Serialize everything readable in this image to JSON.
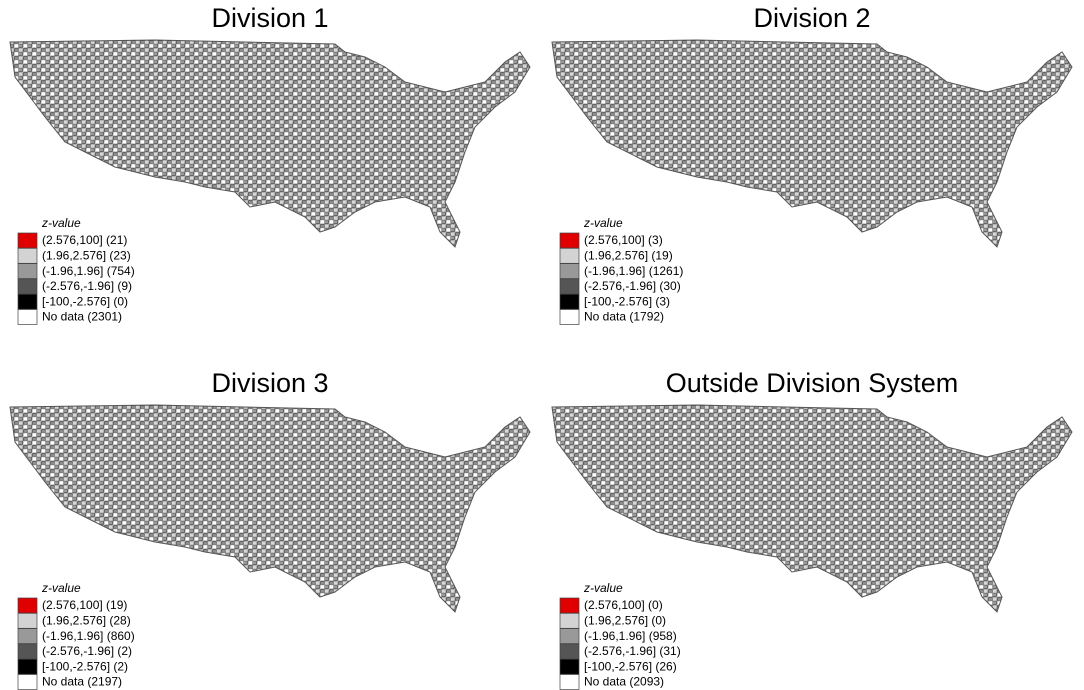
{
  "panels": [
    {
      "title": "Division 1",
      "legend": {
        "title": "z-value",
        "items": [
          "(2.576,100] (21)",
          "(1.96,2.576] (23)",
          "(-1.96,1.96] (754)",
          "(-2.576,-1.96] (9)",
          "[-100,-2.576] (0)",
          "No data (2301)"
        ]
      }
    },
    {
      "title": "Division 2",
      "legend": {
        "title": "z-value",
        "items": [
          "(2.576,100] (3)",
          "(1.96,2.576] (19)",
          "(-1.96,1.96] (1261)",
          "(-2.576,-1.96] (30)",
          "[-100,-2.576] (3)",
          "No data (1792)"
        ]
      }
    },
    {
      "title": "Division 3",
      "legend": {
        "title": "z-value",
        "items": [
          "(2.576,100] (19)",
          "(1.96,2.576] (28)",
          "(-1.96,1.96] (860)",
          "(-2.576,-1.96] (2)",
          "[-100,-2.576] (2)",
          "No data (2197)"
        ]
      }
    },
    {
      "title": "Outside Division System",
      "legend": {
        "title": "z-value",
        "items": [
          "(2.576,100] (0)",
          "(1.96,2.576] (0)",
          "(-1.96,1.96] (958)",
          "(-2.576,-1.96] (31)",
          "[-100,-2.576] (26)",
          "No data (2093)"
        ]
      }
    }
  ]
}
